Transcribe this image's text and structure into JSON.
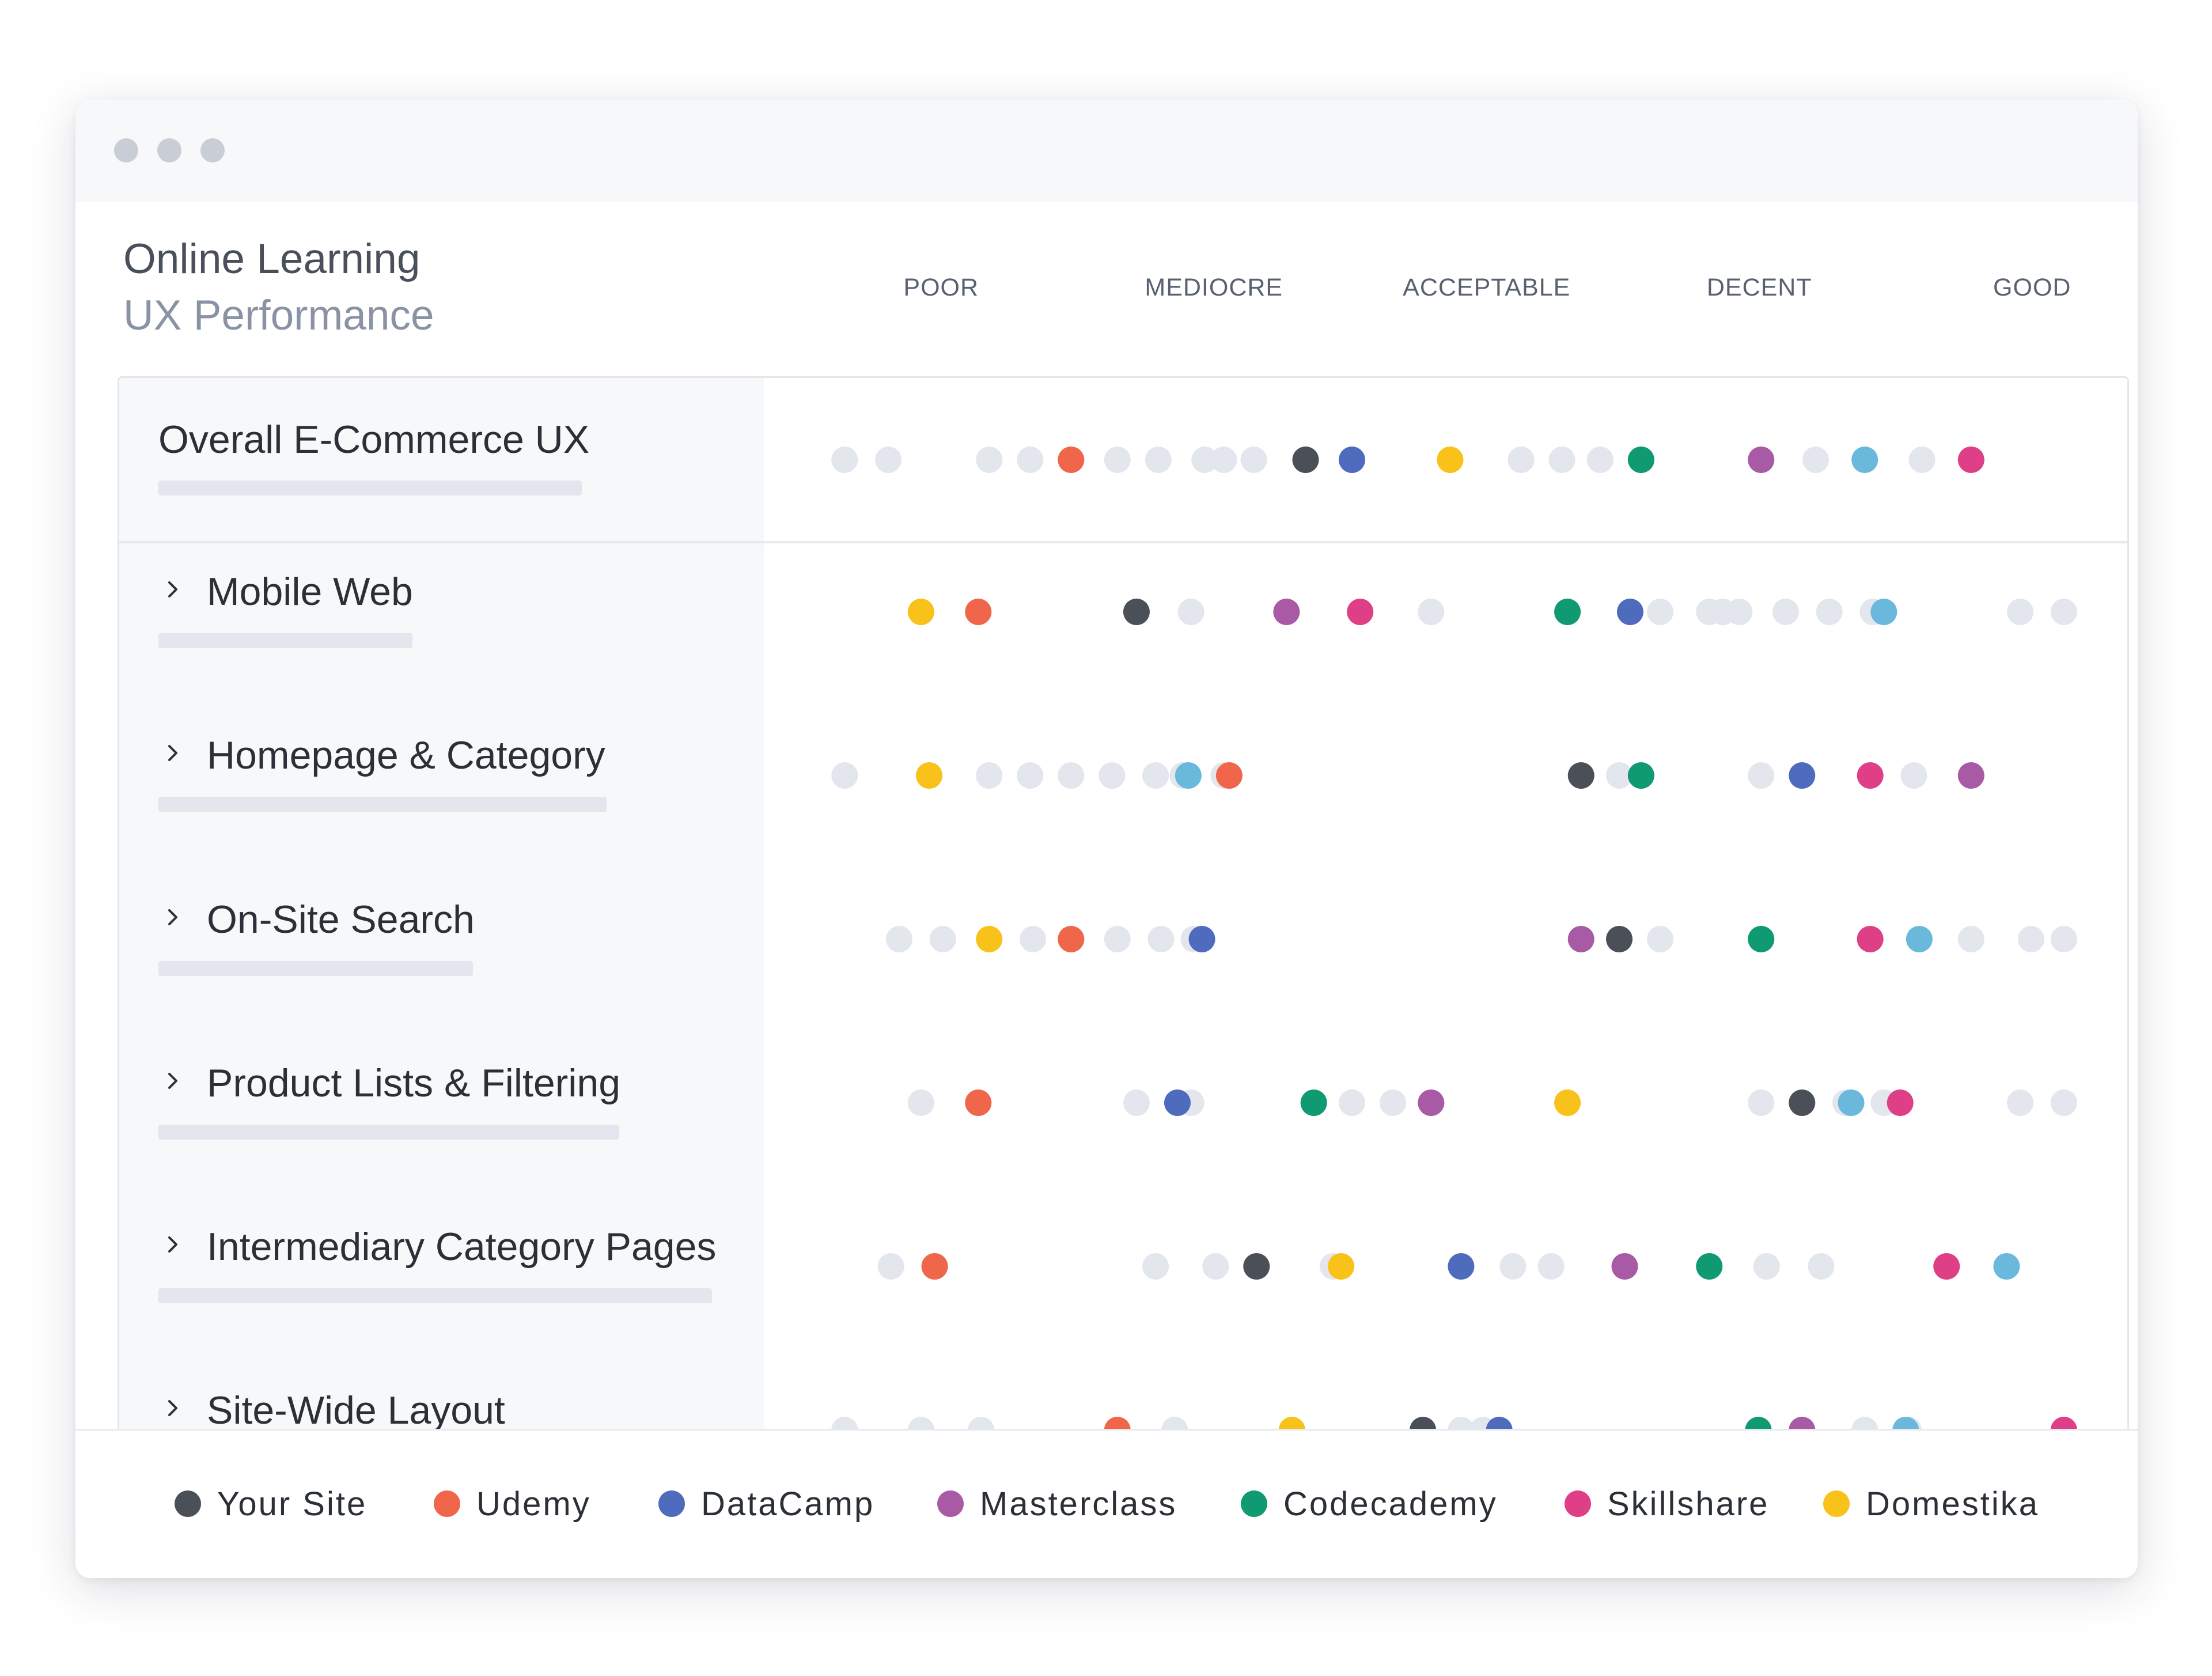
{
  "window": {
    "controls": [
      "close",
      "minimize",
      "maximize"
    ]
  },
  "header": {
    "title": "Online Learning",
    "subtitle": "UX Performance"
  },
  "colors": {
    "your_site": "#4b4f58",
    "udemy": "#f0664a",
    "datacamp": "#4f6bbd",
    "masterclass": "#a95aa5",
    "codecademy": "#0f9a71",
    "skillshare": "#df3f86",
    "domestika": "#f8c21a",
    "light_blue": "#6bb8dd",
    "inactive": "#e3e6ec"
  },
  "chart_data": {
    "type": "scatter",
    "title": "Online Learning",
    "subtitle": "UX Performance",
    "x_axis": {
      "categories": [
        "POOR",
        "MEDIOCRE",
        "ACCEPTABLE",
        "DECENT",
        "GOOD"
      ],
      "range": [
        0,
        5
      ]
    },
    "legend_position": "bottom",
    "series": [
      {
        "name": "Your Site",
        "color": "#4b4f58"
      },
      {
        "name": "Udemy",
        "color": "#f0664a"
      },
      {
        "name": "DataCamp",
        "color": "#4f6bbd"
      },
      {
        "name": "Masterclass",
        "color": "#a95aa5"
      },
      {
        "name": "Codecademy",
        "color": "#0f9a71"
      },
      {
        "name": "Skillshare",
        "color": "#df3f86"
      },
      {
        "name": "Domestika",
        "color": "#f8c21a"
      }
    ],
    "rows": [
      {
        "label": "Overall E-Commerce UX",
        "expandable": false,
        "points": {
          "Your Site": 1.83,
          "Udemy": 0.97,
          "DataCamp": 2.0,
          "Domestika": 2.36,
          "Codecademy": 3.06,
          "Masterclass": 3.5,
          "light_blue": 3.88,
          "Skillshare": 4.27
        },
        "inactive": [
          0.14,
          0.3,
          0.67,
          0.82,
          1.14,
          1.29,
          1.46,
          1.53,
          1.64,
          2.62,
          2.77,
          2.91,
          3.7,
          4.09
        ]
      },
      {
        "label": "Mobile Web",
        "expandable": true,
        "points": {
          "Domestika": 0.42,
          "Udemy": 0.63,
          "Your Site": 1.21,
          "Masterclass": 1.76,
          "Skillshare": 2.03,
          "Codecademy": 2.79,
          "DataCamp": 3.02,
          "light_blue": 3.95
        },
        "inactive": [
          1.41,
          2.29,
          3.13,
          3.31,
          3.36,
          3.42,
          3.59,
          3.75,
          3.91,
          4.45,
          4.61
        ]
      },
      {
        "label": "Homepage & Category",
        "expandable": true,
        "points": {
          "Domestika": 0.45,
          "light_blue": 1.4,
          "Udemy": 1.55,
          "Your Site": 2.84,
          "Codecademy": 3.06,
          "DataCamp": 3.65,
          "Skillshare": 3.9,
          "Masterclass": 4.27
        },
        "inactive": [
          0.14,
          0.67,
          0.82,
          0.97,
          1.12,
          1.28,
          1.38,
          1.53,
          2.98,
          3.5,
          4.06
        ]
      },
      {
        "label": "On-Site Search",
        "expandable": true,
        "points": {
          "Domestika": 0.67,
          "Udemy": 0.97,
          "DataCamp": 1.45,
          "Masterclass": 2.84,
          "Your Site": 2.98,
          "Codecademy": 3.5,
          "Skillshare": 3.9,
          "light_blue": 4.08
        },
        "inactive": [
          0.34,
          0.5,
          0.83,
          1.14,
          1.3,
          1.42,
          3.13,
          4.27,
          4.49,
          4.61
        ]
      },
      {
        "label": "Product Lists & Filtering",
        "expandable": true,
        "points": {
          "Udemy": 0.63,
          "DataCamp": 1.36,
          "Codecademy": 1.86,
          "Masterclass": 2.29,
          "Domestika": 2.79,
          "Your Site": 3.65,
          "light_blue": 3.83,
          "Skillshare": 4.01
        },
        "inactive": [
          0.42,
          1.21,
          1.41,
          2.0,
          2.15,
          3.5,
          3.81,
          3.95,
          4.45,
          4.61
        ]
      },
      {
        "label": "Intermediary Category Pages",
        "expandable": true,
        "points": {
          "Udemy": 0.47,
          "Your Site": 1.65,
          "Domestika": 1.96,
          "DataCamp": 2.4,
          "Masterclass": 3.0,
          "Codecademy": 3.31,
          "Skillshare": 4.18,
          "light_blue": 4.4
        },
        "inactive": [
          0.31,
          1.28,
          1.5,
          1.93,
          2.59,
          2.73,
          3.52,
          3.72
        ]
      },
      {
        "label": "Site-Wide Layout",
        "expandable": true,
        "points": {
          "Udemy": 1.14,
          "Domestika": 1.78,
          "Your Site": 2.26,
          "DataCamp": 2.54,
          "Codecademy": 3.49,
          "Masterclass": 3.65,
          "light_blue": 4.03,
          "Skillshare": 4.61
        },
        "inactive": [
          0.14,
          0.42,
          0.64,
          1.35,
          2.4,
          2.48,
          3.88,
          4.04
        ]
      }
    ]
  }
}
